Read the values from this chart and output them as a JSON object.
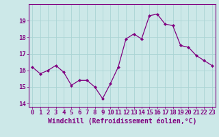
{
  "x": [
    0,
    1,
    2,
    3,
    4,
    5,
    6,
    7,
    8,
    9,
    10,
    11,
    12,
    13,
    14,
    15,
    16,
    17,
    18,
    19,
    20,
    21,
    22,
    23
  ],
  "y": [
    16.2,
    15.8,
    16.0,
    16.3,
    15.9,
    15.1,
    15.4,
    15.4,
    15.0,
    14.3,
    15.2,
    16.2,
    17.9,
    18.2,
    17.9,
    19.3,
    19.4,
    18.8,
    18.7,
    17.5,
    17.4,
    16.9,
    16.6,
    16.3
  ],
  "line_color": "#800080",
  "marker": "D",
  "marker_size": 2,
  "bg_color": "#cce8e8",
  "grid_color": "#aad4d4",
  "xlabel": "Windchill (Refroidissement éolien,°C)",
  "xlabel_fontsize": 7,
  "tick_fontsize": 6.5,
  "ylim": [
    13.8,
    20.0
  ],
  "xlim": [
    -0.5,
    23.5
  ],
  "yticks": [
    14,
    15,
    16,
    17,
    18,
    19
  ],
  "xticks": [
    0,
    1,
    2,
    3,
    4,
    5,
    6,
    7,
    8,
    9,
    10,
    11,
    12,
    13,
    14,
    15,
    16,
    17,
    18,
    19,
    20,
    21,
    22,
    23
  ]
}
